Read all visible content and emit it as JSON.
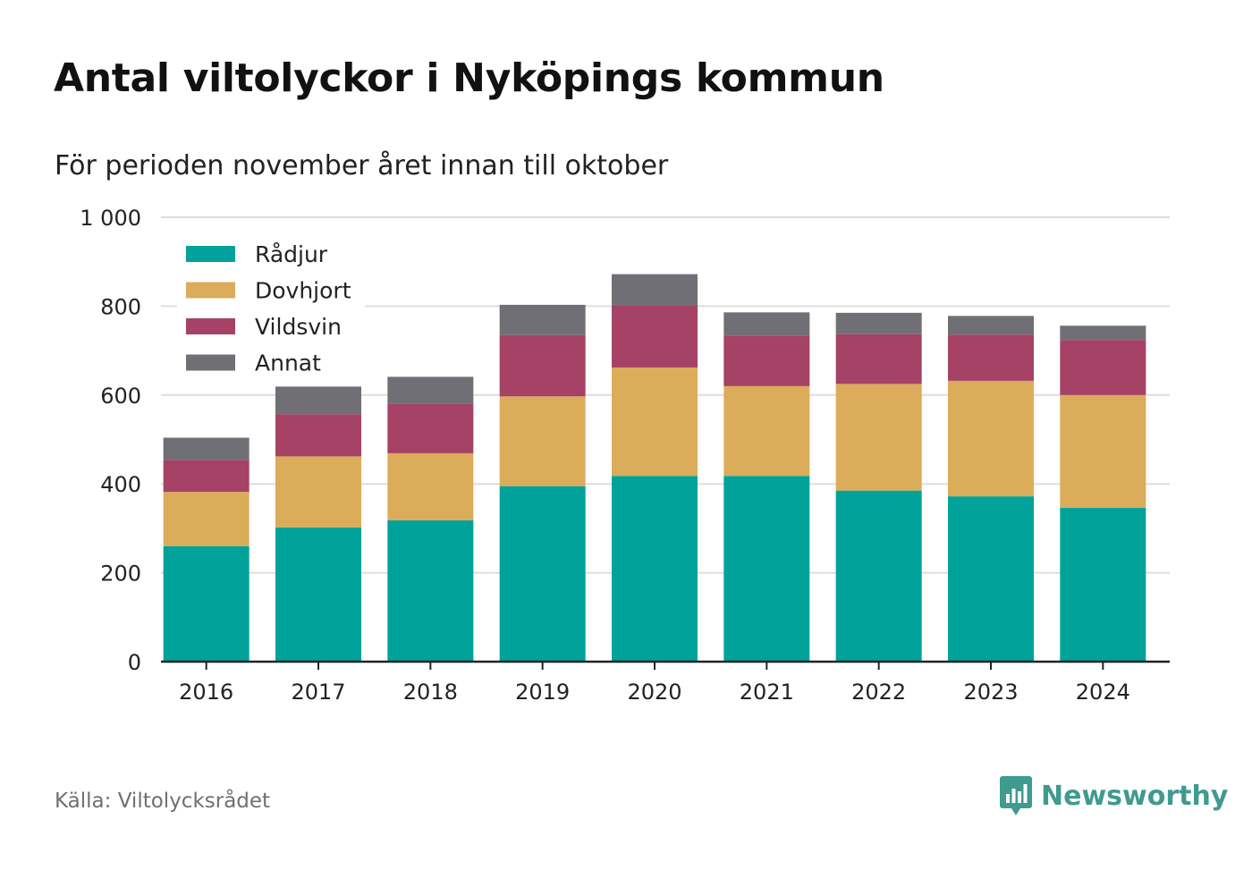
{
  "title": "Antal viltolyckor i Nyköpings kommun",
  "subtitle": "För perioden november året innan till oktober",
  "source": "Källa: Viltolycksrådet",
  "brand": "Newsworthy",
  "colors": {
    "Rådjur": "#00a29a",
    "Dovhjort": "#dbac5a",
    "Vildsvin": "#a54266",
    "Annat": "#706f75",
    "grid": "#dddddd",
    "axis": "#222222",
    "brand": "#3f9a8f"
  },
  "chart_data": {
    "type": "bar",
    "stacked": true,
    "categories": [
      "2016",
      "2017",
      "2018",
      "2019",
      "2020",
      "2021",
      "2022",
      "2023",
      "2024"
    ],
    "series": [
      {
        "name": "Rådjur",
        "values": [
          260,
          302,
          318,
          395,
          418,
          418,
          385,
          372,
          346
        ]
      },
      {
        "name": "Dovhjort",
        "values": [
          122,
          160,
          151,
          202,
          244,
          202,
          240,
          260,
          254
        ]
      },
      {
        "name": "Vildsvin",
        "values": [
          72,
          95,
          112,
          138,
          140,
          114,
          112,
          104,
          124
        ]
      },
      {
        "name": "Annat",
        "values": [
          50,
          62,
          60,
          68,
          70,
          52,
          48,
          42,
          32
        ]
      }
    ],
    "ylim": [
      0,
      1000
    ],
    "yticks": [
      0,
      200,
      400,
      600,
      800,
      1000
    ],
    "ytick_labels": [
      "0",
      "200",
      "400",
      "600",
      "800",
      "1 000"
    ],
    "grid": true,
    "legend": "top-left"
  }
}
